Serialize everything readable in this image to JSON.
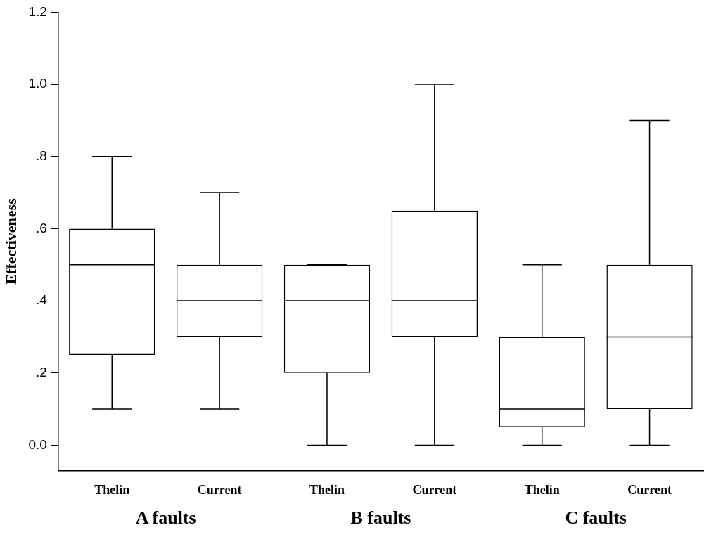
{
  "chart_data": {
    "type": "box",
    "ylabel": "Effectiveness",
    "categories": [
      "Thelin",
      "Current",
      "Thelin",
      "Current",
      "Thelin",
      "Current"
    ],
    "boxes": [
      {
        "low": 0.1,
        "q1": 0.25,
        "median": 0.5,
        "q3": 0.6,
        "high": 0.8
      },
      {
        "low": 0.1,
        "q1": 0.3,
        "median": 0.4,
        "q3": 0.5,
        "high": 0.7
      },
      {
        "low": 0,
        "q1": 0.2,
        "median": 0.4,
        "q3": 0.5,
        "high": 0.5
      },
      {
        "low": 0,
        "q1": 0.3,
        "median": 0.4,
        "q3": 0.65,
        "high": 1.0
      },
      {
        "low": 0,
        "q1": 0.05,
        "median": 0.1,
        "q3": 0.3,
        "high": 0.5
      },
      {
        "low": 0,
        "q1": 0.1,
        "median": 0.3,
        "q3": 0.5,
        "high": 0.9
      }
    ],
    "color": "#000000",
    "annotations": [
      "A faults",
      "B faults",
      "C faults"
    ],
    "ylim": [
      -0.07,
      1.2
    ],
    "yticks": [
      {
        "value": 0,
        "label": "0.0"
      },
      {
        "value": 0.2,
        "label": ".2"
      },
      {
        "value": 0.4,
        "label": ".4"
      },
      {
        "value": 0.6,
        "label": ".6"
      },
      {
        "value": 0.8,
        "label": ".8"
      },
      {
        "value": 1.0,
        "label": "1.0"
      },
      {
        "value": 1.2,
        "label": "1.2"
      }
    ],
    "grid": false,
    "legend": false
  }
}
